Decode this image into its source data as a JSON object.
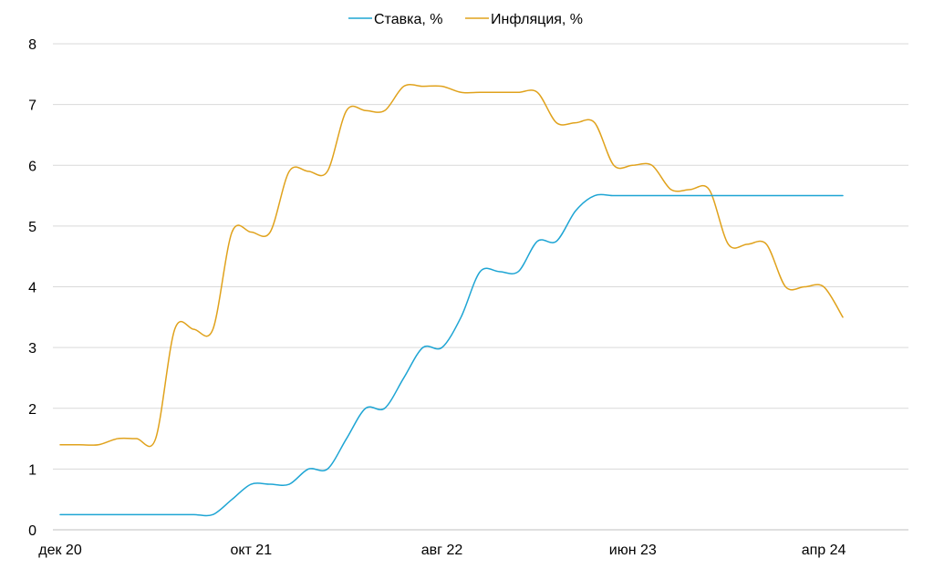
{
  "chart_data": {
    "type": "line",
    "title": "",
    "xlabel": "",
    "ylabel": "",
    "ylim": [
      0,
      8
    ],
    "yticks": [
      "0",
      "1",
      "2",
      "3",
      "4",
      "5",
      "6",
      "7",
      "8"
    ],
    "x_tick_labels": [
      {
        "index": 0,
        "label": "дек 20"
      },
      {
        "index": 10,
        "label": "окт 21"
      },
      {
        "index": 20,
        "label": "авг 22"
      },
      {
        "index": 30,
        "label": "июн 23"
      },
      {
        "index": 40,
        "label": "апр 24"
      }
    ],
    "grid": true,
    "legend_position": "top-center",
    "x": [
      "дек 20",
      "янв 21",
      "фев 21",
      "мар 21",
      "апр 21",
      "май 21",
      "июн 21",
      "июл 21",
      "авг 21",
      "сен 21",
      "окт 21",
      "ноя 21",
      "дек 21",
      "янв 22",
      "фев 22",
      "мар 22",
      "апр 22",
      "май 22",
      "июн 22",
      "июл 22",
      "авг 22",
      "сен 22",
      "окт 22",
      "ноя 22",
      "дек 22",
      "янв 23",
      "фев 23",
      "мар 23",
      "апр 23",
      "май 23",
      "июн 23",
      "июл 23",
      "авг 23",
      "сен 23",
      "окт 23",
      "ноя 23",
      "дек 23",
      "янв 24",
      "фев 24",
      "мар 24",
      "апр 24",
      "май 24"
    ],
    "series": [
      {
        "name": "Ставка, %",
        "color": "#1ea5d4",
        "values": [
          0.25,
          0.25,
          0.25,
          0.25,
          0.25,
          0.25,
          0.25,
          0.25,
          0.25,
          0.5,
          0.75,
          0.75,
          0.75,
          1.0,
          1.0,
          1.5,
          2.0,
          2.0,
          2.5,
          3.0,
          3.0,
          3.5,
          4.25,
          4.25,
          4.25,
          4.75,
          4.75,
          5.25,
          5.5,
          5.5,
          5.5,
          5.5,
          5.5,
          5.5,
          5.5,
          5.5,
          5.5,
          5.5,
          5.5,
          5.5,
          5.5,
          5.5
        ]
      },
      {
        "name": "Инфляция, %",
        "color": "#e0a21c",
        "values": [
          1.4,
          1.4,
          1.4,
          1.5,
          1.5,
          1.5,
          3.3,
          3.3,
          3.3,
          4.9,
          4.9,
          4.9,
          5.9,
          5.9,
          5.9,
          6.9,
          6.9,
          6.9,
          7.3,
          7.3,
          7.3,
          7.2,
          7.2,
          7.2,
          7.2,
          7.2,
          6.7,
          6.7,
          6.7,
          6.0,
          6.0,
          6.0,
          5.6,
          5.6,
          5.6,
          4.7,
          4.7,
          4.7,
          4.0,
          4.0,
          4.0,
          3.5
        ]
      }
    ]
  }
}
